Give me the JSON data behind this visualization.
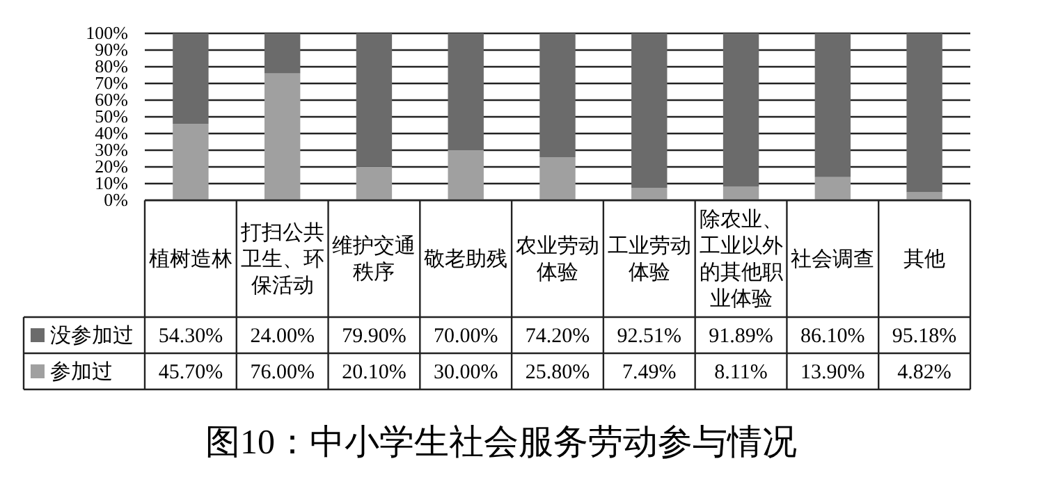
{
  "chart_data": {
    "type": "bar",
    "stacked": true,
    "title": "图10：中小学生社会服务劳动参与情况",
    "categories": [
      "植树造林",
      "打扫公共卫生、环保活动",
      "维护交通秩序",
      "敬老助残",
      "农业劳动体验",
      "工业劳动体验",
      "除农业、工业以外的其他职业体验",
      "社会调查",
      "其他"
    ],
    "series": [
      {
        "name": "参加过",
        "color": "#a0a0a0",
        "values": [
          45.7,
          76.0,
          20.1,
          30.0,
          25.8,
          7.49,
          8.11,
          13.9,
          4.82
        ],
        "value_labels": [
          "45.70%",
          "76.00%",
          "20.10%",
          "30.00%",
          "25.80%",
          "7.49%",
          "8.11%",
          "13.90%",
          "4.82%"
        ]
      },
      {
        "name": "没参加过",
        "color": "#6b6b6b",
        "values": [
          54.3,
          24.0,
          79.9,
          70.0,
          74.2,
          92.51,
          91.89,
          86.1,
          95.18
        ],
        "value_labels": [
          "54.30%",
          "24.00%",
          "79.90%",
          "70.00%",
          "74.20%",
          "92.51%",
          "91.89%",
          "86.10%",
          "95.18%"
        ]
      }
    ],
    "ylim": [
      0,
      100
    ],
    "yticks": [
      {
        "value": 0,
        "label": "0%"
      },
      {
        "value": 10,
        "label": "10%"
      },
      {
        "value": 20,
        "label": "20%"
      },
      {
        "value": 30,
        "label": "30%"
      },
      {
        "value": 40,
        "label": "40%"
      },
      {
        "value": 50,
        "label": "50%"
      },
      {
        "value": 60,
        "label": "60%"
      },
      {
        "value": 70,
        "label": "70%"
      },
      {
        "value": 80,
        "label": "80%"
      },
      {
        "value": 90,
        "label": "90%"
      },
      {
        "value": 100,
        "label": "100%"
      }
    ],
    "grid": "y",
    "legend": "bottom"
  }
}
